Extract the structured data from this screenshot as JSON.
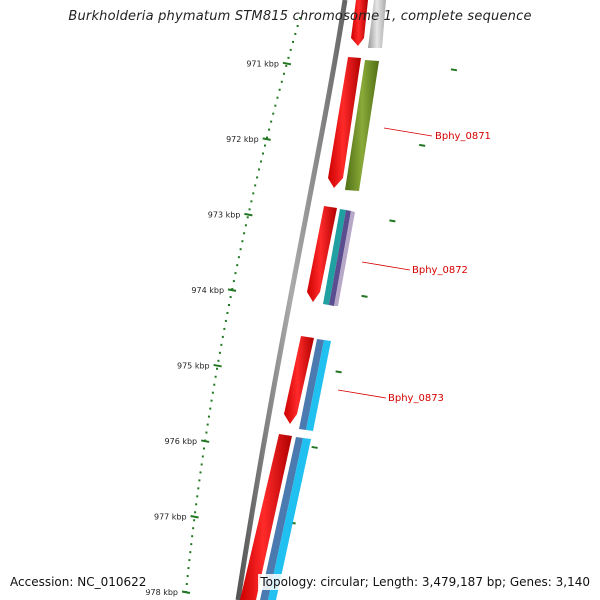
{
  "title": "Burkholderia phymatum STM815 chromosome 1, complete sequence",
  "accession": "Accession: NC_010622",
  "topology": "Topology: circular; Length: 3,479,187 bp; Genes: 3,140",
  "colors": {
    "cds": "#ee0000",
    "olive": "#6a8a20",
    "teal": "#20a0a0",
    "purple": "#6a5a9a",
    "steel": "#4a7ab0",
    "cyan": "#20c0f0",
    "grey": "#bbbbbb",
    "tick": "#227722",
    "label": "#d40000"
  },
  "ticks": [
    {
      "kbp": 971,
      "label": "971 kbp"
    },
    {
      "kbp": 972,
      "label": "972 kbp"
    },
    {
      "kbp": 973,
      "label": "973 kbp"
    },
    {
      "kbp": 974,
      "label": "974 kbp"
    },
    {
      "kbp": 975,
      "label": "975 kbp"
    },
    {
      "kbp": 976,
      "label": "976 kbp"
    },
    {
      "kbp": 977,
      "label": "977 kbp"
    },
    {
      "kbp": 978,
      "label": "978 kbp"
    }
  ],
  "genes": [
    {
      "name": "Bphy_0871"
    },
    {
      "name": "Bphy_0872"
    },
    {
      "name": "Bphy_0873"
    }
  ]
}
